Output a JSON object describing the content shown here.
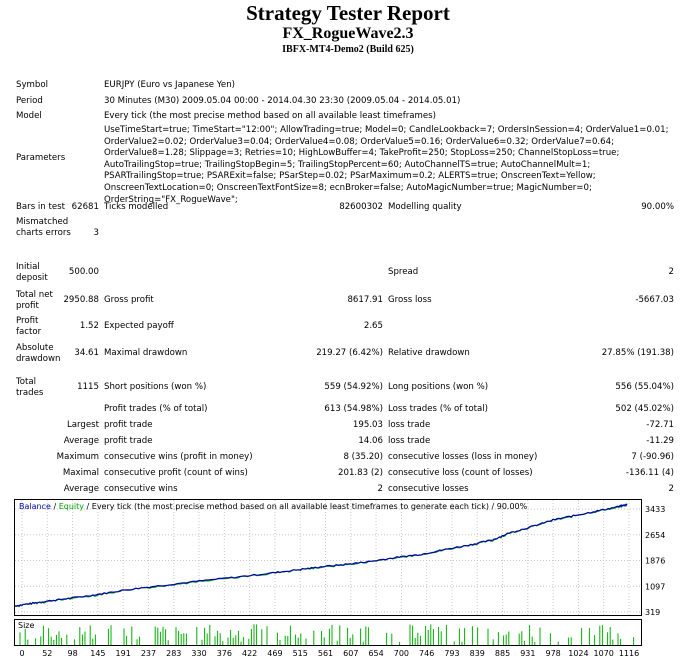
{
  "header": {
    "title": "Strategy Tester Report",
    "expert": "FX_RogueWave2.3",
    "server": "IBFX-MT4-Demo2 (Build 625)"
  },
  "rows": {
    "symbol_label": "Symbol",
    "symbol_value": "EURJPY (Euro vs Japanese Yen)",
    "period_label": "Period",
    "period_value": "30 Minutes (M30) 2009.05.04 00:00 - 2014.04.30 23:30 (2009.05.04 - 2014.05.01)",
    "model_label": "Model",
    "model_value": "Every tick (the most precise method based on all available least timeframes)",
    "parameters_label": "Parameters",
    "parameters_value": "UseTimeStart=true; TimeStart=\"12:00\"; AllowTrading=true; Model=0; CandleLookback=7; OrdersInSession=4; OrderValue1=0.01; OrderValue2=0.02; OrderValue3=0.04; OrderValue4=0.08; OrderValue5=0.16; OrderValue6=0.32; OrderValue7=0.64; OrderValue8=1.28; Slippage=3; Retries=10; HighLowBuffer=4; TakeProfit=250; StopLoss=250; ChannelStopLoss=true; AutoTrailingStop=true; TrailingStopBegin=5; TrailingStopPercent=60; AutoChannelTS=true; AutoChannelMult=1; PSARTrailingStop=true; PSARExit=false; PSarStep=0.02; PSarMaximum=0.2; ALERTS=true; OnscreenText=Yellow; OnscreenTextLocation=0; OnscreenTextFontSize=8; ecnBroker=false; AutoMagicNumber=true; MagicNumber=0; OrderString=\"FX_RogueWave\";",
    "bars_label": "Bars in test",
    "bars_value": "62681",
    "ticks_label": "Ticks modelled",
    "ticks_value": "82600302",
    "quality_label": "Modelling quality",
    "quality_value": "90.00%",
    "mismatched_label": "Mismatched charts errors",
    "mismatched_value": "3",
    "deposit_label": "Initial deposit",
    "deposit_value": "500.00",
    "spread_label": "Spread",
    "spread_value": "2",
    "netprofit_label": "Total net profit",
    "netprofit_value": "2950.88",
    "grossprofit_label": "Gross profit",
    "grossprofit_value": "8617.91",
    "grossloss_label": "Gross loss",
    "grossloss_value": "-5667.03",
    "pf_label": "Profit factor",
    "pf_value": "1.52",
    "payoff_label": "Expected payoff",
    "payoff_value": "2.65",
    "absdd_label": "Absolute drawdown",
    "absdd_value": "34.61",
    "maxdd_label": "Maximal drawdown",
    "maxdd_value": "219.27 (6.42%)",
    "reldd_label": "Relative drawdown",
    "reldd_value": "27.85% (191.38)",
    "trades_label": "Total trades",
    "trades_value": "1115",
    "short_label": "Short positions (won %)",
    "short_value": "559 (54.92%)",
    "long_label": "Long positions (won %)",
    "long_value": "556 (55.04%)",
    "ptrades_label": "Profit trades (% of total)",
    "ptrades_value": "613 (54.98%)",
    "ltrades_label": "Loss trades (% of total)",
    "ltrades_value": "502 (45.02%)",
    "largest": "Largest",
    "average": "Average",
    "maximum": "Maximum",
    "maximal": "Maximal",
    "profit_trade": "profit trade",
    "loss_trade": "loss trade",
    "largest_profit": "195.03",
    "largest_loss": "-72.71",
    "average_profit": "14.06",
    "average_loss": "-11.29",
    "cwins_label": "consecutive wins (profit in money)",
    "cwins_value": "8 (35.20)",
    "closses_label": "consecutive losses (loss in money)",
    "closses_value": "7 (-90.96)",
    "cprofit_label": "consecutive profit (count of wins)",
    "cprofit_value": "201.83 (2)",
    "closs_label": "consecutive loss (count of losses)",
    "closs_value": "-136.11 (4)",
    "avgwins_label": "consecutive wins",
    "avgwins_value": "2",
    "avglosses_label": "consecutive losses",
    "avglosses_value": "2"
  },
  "chart_data": {
    "type": "line",
    "legend": {
      "balance": "Balance",
      "sep": " / ",
      "equity": "Equity",
      "rest": " / Every tick (the most precise method based on all available least timeframes to generate each tick) / 90.00%"
    },
    "colors": {
      "balance": "#0000b0",
      "equity": "#00a000",
      "size": "#00b000",
      "grid": "#c8c8c8"
    },
    "y_ticks": [
      "3433",
      "2654",
      "1876",
      "1097",
      "319"
    ],
    "x_ticks": [
      "0",
      "52",
      "98",
      "145",
      "191",
      "237",
      "283",
      "330",
      "376",
      "422",
      "469",
      "515",
      "561",
      "607",
      "654",
      "700",
      "746",
      "793",
      "839",
      "885",
      "931",
      "978",
      "1024",
      "1070",
      "1116"
    ],
    "size_label": "Size",
    "xlim": [
      0,
      1140
    ],
    "ylim": [
      319,
      3433
    ],
    "series": [
      {
        "name": "Balance",
        "x": [
          0,
          30,
          60,
          100,
          150,
          200,
          260,
          330,
          400,
          470,
          520,
          560,
          610,
          650,
          700,
          740,
          780,
          830,
          870,
          900,
          940,
          980,
          1020,
          1060,
          1100,
          1115
        ],
        "y": [
          500,
          570,
          640,
          720,
          830,
          960,
          1080,
          1210,
          1330,
          1460,
          1560,
          1640,
          1720,
          1800,
          1920,
          2000,
          2130,
          2280,
          2420,
          2620,
          2800,
          3000,
          3130,
          3260,
          3390,
          3450
        ]
      }
    ]
  }
}
